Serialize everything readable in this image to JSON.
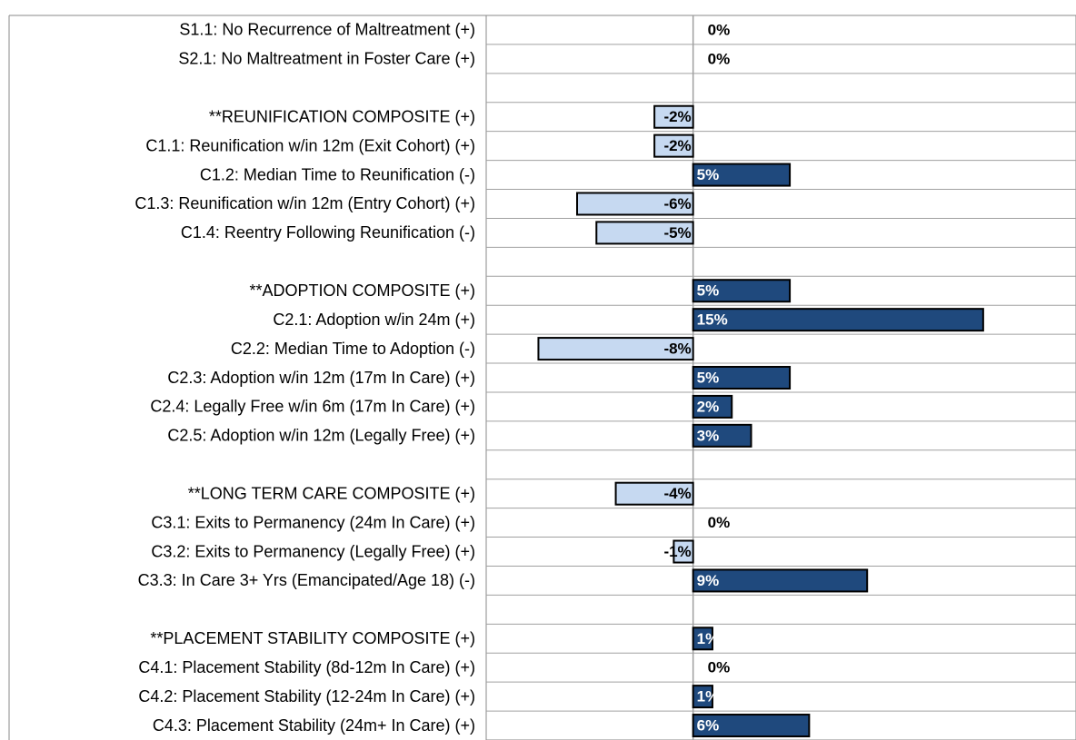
{
  "chart_data": {
    "type": "bar",
    "orientation": "horizontal",
    "categories": [
      "S1.1: No Recurrence of Maltreatment (+)",
      "S2.1: No Maltreatment in Foster Care (+)",
      null,
      "**REUNIFICATION COMPOSITE (+)",
      "C1.1: Reunification w/in 12m (Exit Cohort) (+)",
      "C1.2: Median Time to Reunification (-)",
      "C1.3: Reunification w/in 12m (Entry Cohort) (+)",
      "C1.4: Reentry Following Reunification (-)",
      null,
      "**ADOPTION COMPOSITE (+)",
      "C2.1: Adoption w/in 24m (+)",
      "C2.2: Median Time to Adoption (-)",
      "C2.3: Adoption w/in 12m (17m In Care) (+)",
      "C2.4: Legally Free w/in 6m (17m In Care) (+)",
      "C2.5: Adoption w/in 12m (Legally Free) (+)",
      null,
      "**LONG TERM CARE COMPOSITE (+)",
      "C3.1:  Exits to Permanency (24m In Care) (+)",
      "C3.2:  Exits to Permanency (Legally Free) (+)",
      "C3.3: In Care 3+ Yrs (Emancipated/Age 18) (-)",
      null,
      "**PLACEMENT STABILITY COMPOSITE (+)",
      "C4.1: Placement Stability (8d-12m In Care) (+)",
      "C4.2: Placement Stability (12-24m In Care) (+)",
      "C4.3: Placement Stability (24m+ In Care) (+)"
    ],
    "values": [
      0,
      0,
      null,
      -2,
      -2,
      5,
      -6,
      -5,
      null,
      5,
      15,
      -8,
      5,
      2,
      3,
      null,
      -4,
      0,
      -1,
      9,
      null,
      1,
      0,
      1,
      6
    ],
    "value_labels": [
      "0%",
      "0%",
      null,
      "-2%",
      "-2%",
      "5%",
      "-6%",
      "-5%",
      null,
      "5%",
      "15%",
      "-8%",
      "5%",
      "2%",
      "3%",
      null,
      "-4%",
      "0%",
      "-1%",
      "9%",
      null,
      "1%",
      "0%",
      "1%",
      "6%"
    ],
    "color_positive": "#1f497d",
    "color_negative": "#c6d9f1",
    "xlim": [
      -10.7,
      19.8
    ],
    "grid": true
  }
}
